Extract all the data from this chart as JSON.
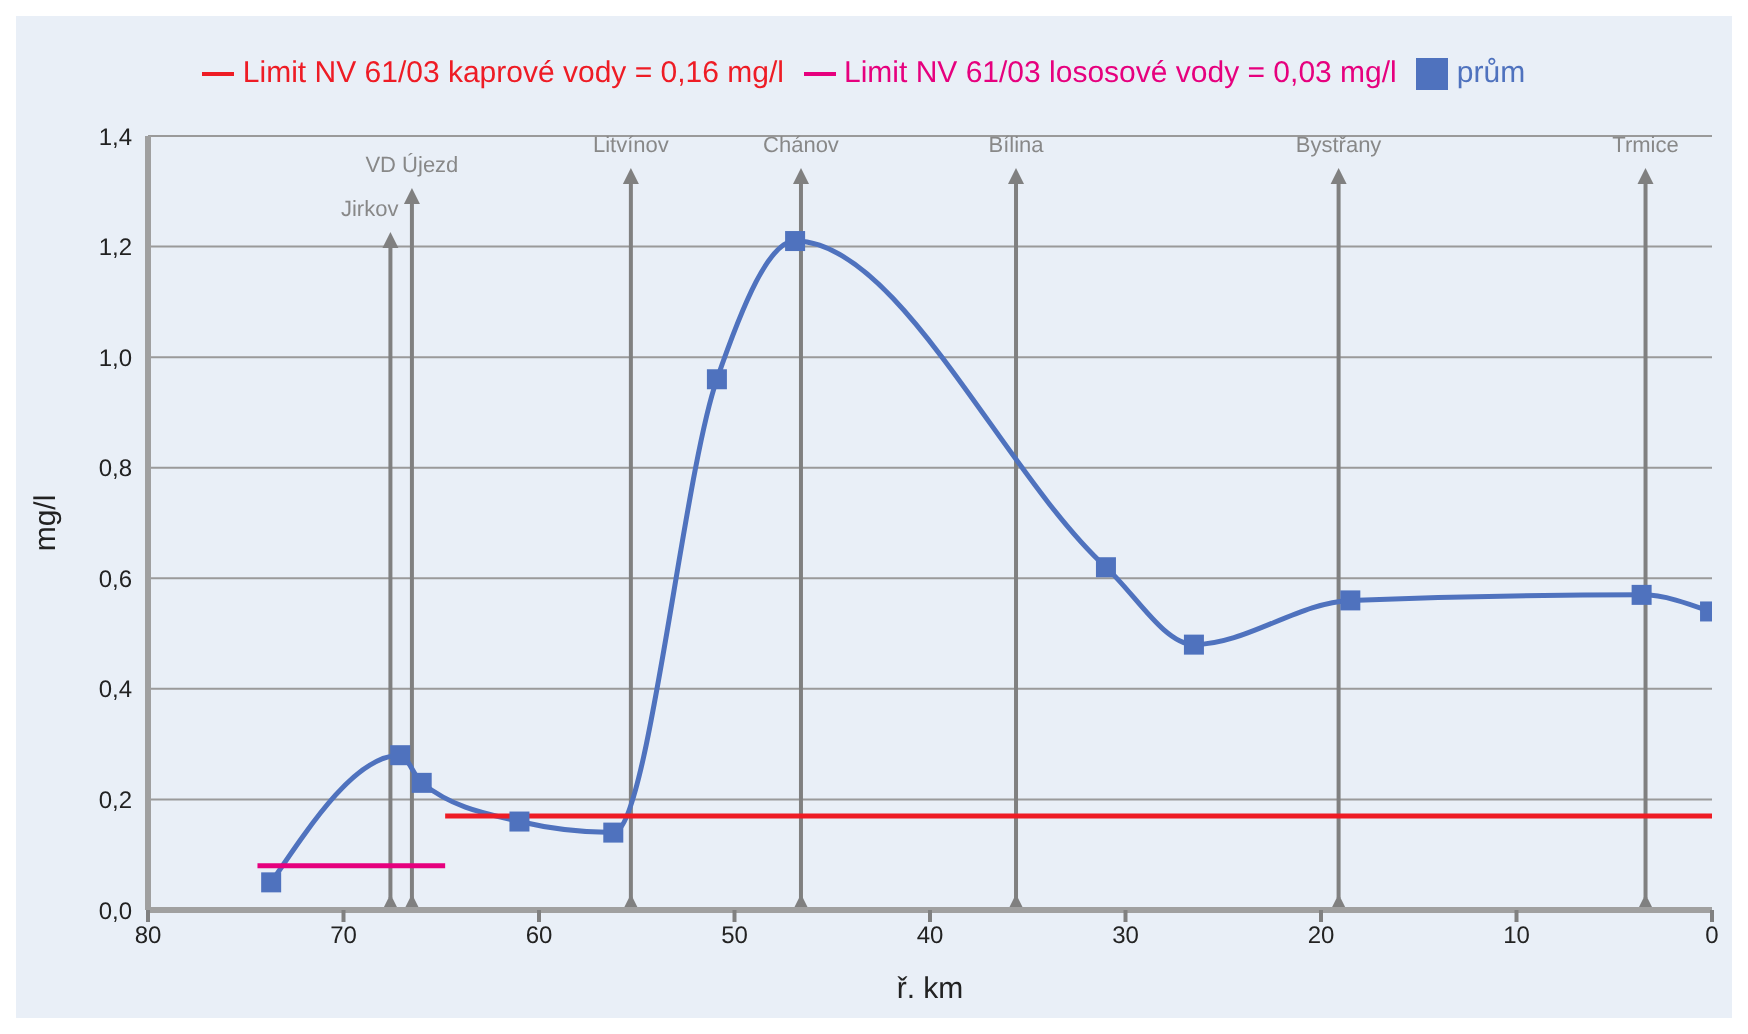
{
  "chart_data": {
    "type": "line",
    "xlabel": "ř. km",
    "ylabel": "mg/l",
    "xlim": [
      80,
      0
    ],
    "xticks": [
      80,
      70,
      60,
      50,
      40,
      30,
      20,
      10,
      0
    ],
    "ylim": [
      0,
      1.4
    ],
    "yticks": [
      {
        "value": 0,
        "label": "0,0"
      },
      {
        "value": 0.2,
        "label": "0,2"
      },
      {
        "value": 0.4,
        "label": "0,4"
      },
      {
        "value": 0.6,
        "label": "0,6"
      },
      {
        "value": 0.8,
        "label": "0,8"
      },
      {
        "value": 1.0,
        "label": "1,0"
      },
      {
        "value": 1.2,
        "label": "1,2"
      },
      {
        "value": 1.4,
        "label": "1,4"
      }
    ],
    "grid": "y",
    "legend": "top",
    "series": [
      {
        "name": "prům",
        "color": "#4f72be",
        "marker": "square",
        "x": [
          73.7,
          67.1,
          66.0,
          61.0,
          56.2,
          50.9,
          46.9,
          31.0,
          26.5,
          18.5,
          3.6,
          0.1
        ],
        "values": [
          0.05,
          0.28,
          0.23,
          0.16,
          0.14,
          0.96,
          1.21,
          0.62,
          0.48,
          0.56,
          0.57,
          0.54
        ]
      },
      {
        "name": "Limit NV 61/03 lososové vody = 0,03 mg/l",
        "color": "#e6007e",
        "marker": "none",
        "x": [
          74.4,
          64.8
        ],
        "values": [
          0.08,
          0.08
        ]
      },
      {
        "name": "Limit NV 61/03 kaprové vody = 0,16 mg/l",
        "color": "#ee1c25",
        "marker": "none",
        "x": [
          64.8,
          0
        ],
        "values": [
          0.17,
          0.17
        ]
      }
    ],
    "ref_lines": [
      {
        "axis": "x",
        "value": 67.6,
        "label": "Jirkov",
        "color": "#808080"
      },
      {
        "axis": "x",
        "value": 66.5,
        "label": "VD Újezd",
        "color": "#808080"
      },
      {
        "axis": "x",
        "value": 55.3,
        "label": "Litvínov",
        "color": "#808080"
      },
      {
        "axis": "x",
        "value": 46.6,
        "label": "Chánov",
        "color": "#808080"
      },
      {
        "axis": "x",
        "value": 35.6,
        "label": "Bílina",
        "color": "#808080"
      },
      {
        "axis": "x",
        "value": 19.1,
        "label": "Bystřany",
        "color": "#808080"
      },
      {
        "axis": "x",
        "value": 3.4,
        "label": "Trmice",
        "color": "#808080"
      }
    ]
  }
}
